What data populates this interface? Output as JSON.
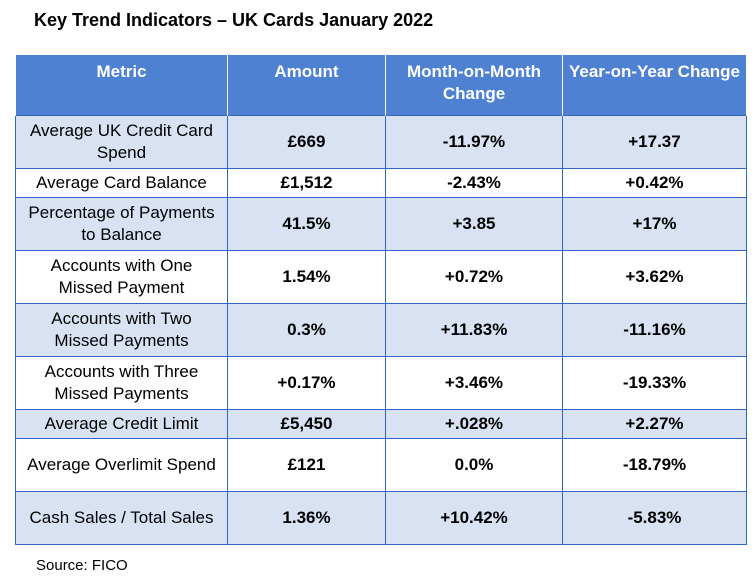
{
  "title": "Key Trend Indicators – UK Cards January 2022",
  "columns": [
    "Metric",
    "Amount",
    "Month-on-Month Change",
    "Year-on-Year Change"
  ],
  "rows": [
    {
      "metric": "Average UK Credit Card Spend",
      "amount": "£669",
      "mom": "-11.97%",
      "yoy": "+17.37"
    },
    {
      "metric": "Average Card Balance",
      "amount": "£1,512",
      "mom": "-2.43%",
      "yoy": "+0.42%"
    },
    {
      "metric": "Percentage of Payments to Balance",
      "amount": "41.5%",
      "mom": "+3.85",
      "yoy": "+17%"
    },
    {
      "metric": "Accounts with One Missed Payment",
      "amount": "1.54%",
      "mom": "+0.72%",
      "yoy": "+3.62%"
    },
    {
      "metric": "Accounts with Two Missed Payments",
      "amount": "0.3%",
      "mom": "+11.83%",
      "yoy": "-11.16%"
    },
    {
      "metric": "Accounts with Three Missed Payments",
      "amount": "+0.17%",
      "mom": "+3.46%",
      "yoy": "-19.33%"
    },
    {
      "metric": "Average Credit Limit",
      "amount": "£5,450",
      "mom": "+.028%",
      "yoy": "+2.27%"
    },
    {
      "metric": "Average Overlimit Spend",
      "amount": "£121",
      "mom": "0.0%",
      "yoy": "-18.79%"
    },
    {
      "metric": "Cash Sales / Total Sales",
      "amount": "1.36%",
      "mom": "+10.42%",
      "yoy": "-5.83%"
    }
  ],
  "source": "Source: FICO",
  "colors": {
    "header": "#4f81d3",
    "shaded_row": "#d9e2f3",
    "border": "#2d68c4"
  }
}
